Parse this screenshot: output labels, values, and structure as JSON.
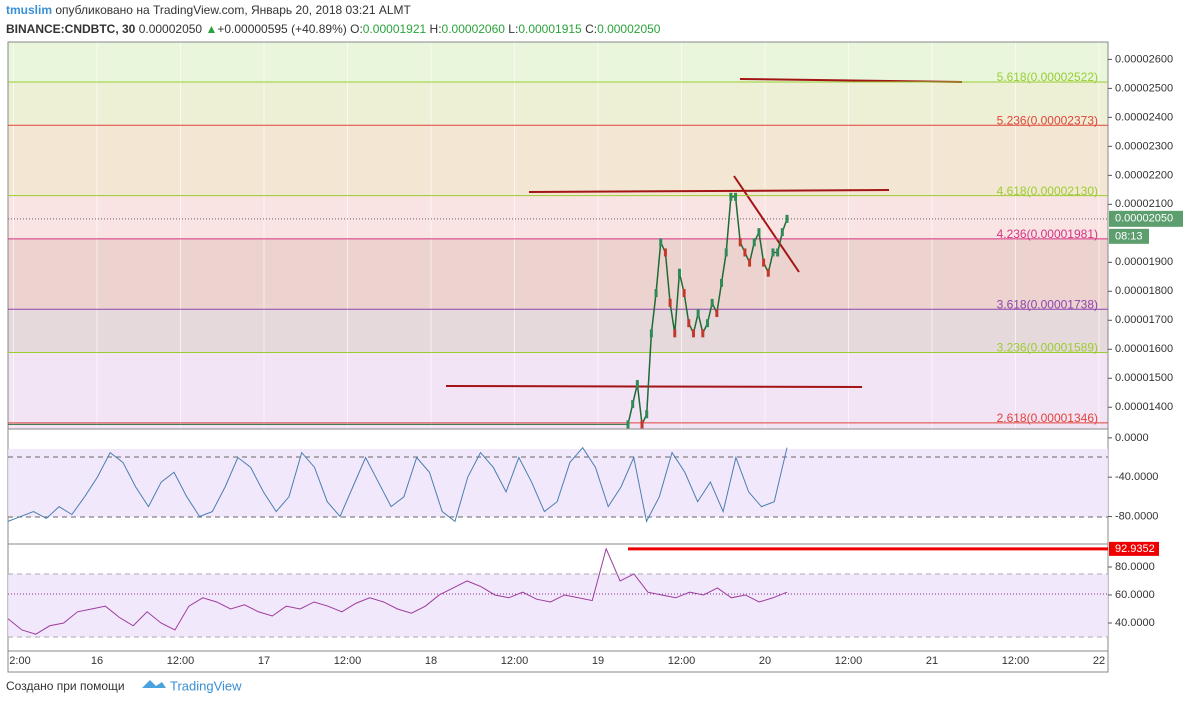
{
  "header": {
    "author": "tmuslim",
    "published": "опубликовано на TradingView.com, Январь 20, 2018 03:21 ALMT",
    "symbol": "BINANCE:CNDBTC, 30",
    "last": "0.00002050",
    "change": "+0.00000595 (+40.89%)",
    "o_label": "O:",
    "o": "0.00001921",
    "h_label": "H:",
    "h": "0.00002060",
    "l_label": "L:",
    "l": "0.00001915",
    "c_label": "C:",
    "c": "0.00002050"
  },
  "price_axis": {
    "ylim": [
      1.325e-05,
      2.66e-05
    ],
    "ticks": [
      {
        "value": 2.6e-05,
        "label": "0.00002600"
      },
      {
        "value": 2.5e-05,
        "label": "0.00002500"
      },
      {
        "value": 2.4e-05,
        "label": "0.00002400"
      },
      {
        "value": 2.3e-05,
        "label": "0.00002300"
      },
      {
        "value": 2.2e-05,
        "label": "0.00002200"
      },
      {
        "value": 2.1e-05,
        "label": "0.00002100"
      },
      {
        "value": 1.9e-05,
        "label": "0.00001900"
      },
      {
        "value": 1.8e-05,
        "label": "0.00001800"
      },
      {
        "value": 1.7e-05,
        "label": "0.00001700"
      },
      {
        "value": 1.6e-05,
        "label": "0.00001600"
      },
      {
        "value": 1.5e-05,
        "label": "0.00001500"
      },
      {
        "value": 1.4e-05,
        "label": "0.00001400"
      }
    ],
    "badge": "0.00002050",
    "badge_value": 2.05e-05,
    "countdown": "08:13"
  },
  "fib_levels": [
    {
      "label": "5.618(0.00002522)",
      "value": 2.522e-05,
      "color": "#9acd32",
      "band": "#e9f6dc"
    },
    {
      "label": "5.236(0.00002373)",
      "value": 2.373e-05,
      "color": "#e0453a",
      "band": "#eef0d6"
    },
    {
      "label": "4.618(0.00002130)",
      "value": 2.13e-05,
      "color": "#9acd32",
      "band": "#f3e7d3"
    },
    {
      "label": "4.236(0.00001981)",
      "value": 1.981e-05,
      "color": "#d63384",
      "band": "#f9e3e3"
    },
    {
      "label": "3.618(0.00001738)",
      "value": 1.738e-05,
      "color": "#8e44ad",
      "band": "#ecd3cf"
    },
    {
      "label": "3.236(0.00001589)",
      "value": 1.589e-05,
      "color": "#9acd32",
      "band": "#e6d9dc"
    },
    {
      "label": "2.618(0.00001346)",
      "value": 1.346e-05,
      "color": "#e0453a",
      "band": "#f2e3f5"
    }
  ],
  "closes": [
    1.341e-05,
    1.411e-05,
    1.48e-05,
    1.341e-05,
    1.376e-05,
    1.655e-05,
    1.794e-05,
    1.969e-05,
    1.934e-05,
    1.76e-05,
    1.655e-05,
    1.864e-05,
    1.794e-05,
    1.69e-05,
    1.655e-05,
    1.725e-05,
    1.655e-05,
    1.69e-05,
    1.76e-05,
    1.725e-05,
    1.829e-05,
    1.934e-05,
    2.126e-05,
    2.126e-05,
    1.969e-05,
    1.934e-05,
    1.899e-05,
    1.969e-05,
    2.004e-05,
    1.899e-05,
    1.864e-05,
    1.934e-05,
    1.934e-05,
    2.004e-05,
    2.05e-05
  ],
  "osc1": {
    "ylim": [
      8,
      -107
    ],
    "ticks": [
      {
        "value": 0,
        "label": "0.0000"
      },
      {
        "value": -40,
        "label": "-40.0000"
      },
      {
        "value": -80,
        "label": "-80.0000"
      }
    ],
    "values": [
      -85,
      -80,
      -75,
      -82,
      -70,
      -78,
      -60,
      -40,
      -15,
      -25,
      -50,
      -70,
      -45,
      -35,
      -60,
      -80,
      -75,
      -50,
      -20,
      -30,
      -55,
      -75,
      -60,
      -15,
      -30,
      -65,
      -80,
      -50,
      -20,
      -45,
      -70,
      -60,
      -20,
      -35,
      -75,
      -85,
      -40,
      -15,
      -30,
      -55,
      -20,
      -45,
      -75,
      -65,
      -25,
      -10,
      -30,
      -70,
      -50,
      -20,
      -85,
      -60,
      -15,
      -35,
      -65,
      -45,
      -75,
      -20,
      -55,
      -70,
      -65,
      -10
    ]
  },
  "osc2": {
    "ylim": [
      95.7,
      20.7
    ],
    "ticks": [
      {
        "value": 80,
        "label": "80.0000"
      },
      {
        "value": 60,
        "label": "60.0000"
      },
      {
        "value": 40,
        "label": "40.0000"
      }
    ],
    "values": [
      43,
      35,
      32,
      38,
      40,
      48,
      50,
      52,
      44,
      38,
      48,
      40,
      35,
      52,
      58,
      55,
      50,
      53,
      48,
      45,
      52,
      50,
      55,
      52,
      48,
      54,
      58,
      55,
      50,
      47,
      52,
      60,
      65,
      70,
      66,
      60,
      58,
      62,
      57,
      55,
      60,
      58,
      56,
      93,
      70,
      75,
      62,
      60,
      58,
      62,
      60,
      65,
      58,
      60,
      55,
      58,
      62
    ],
    "max_label": "92.9352",
    "max": 92.9352
  },
  "time_axis": [
    "2:00",
    "16",
    "12:00",
    "17",
    "12:00",
    "18",
    "12:00",
    "19",
    "12:00",
    "20",
    "12:00",
    "21",
    "12:00",
    "22"
  ],
  "footer": {
    "made_with": "Создано при помощи",
    "brand": "TradingView"
  }
}
